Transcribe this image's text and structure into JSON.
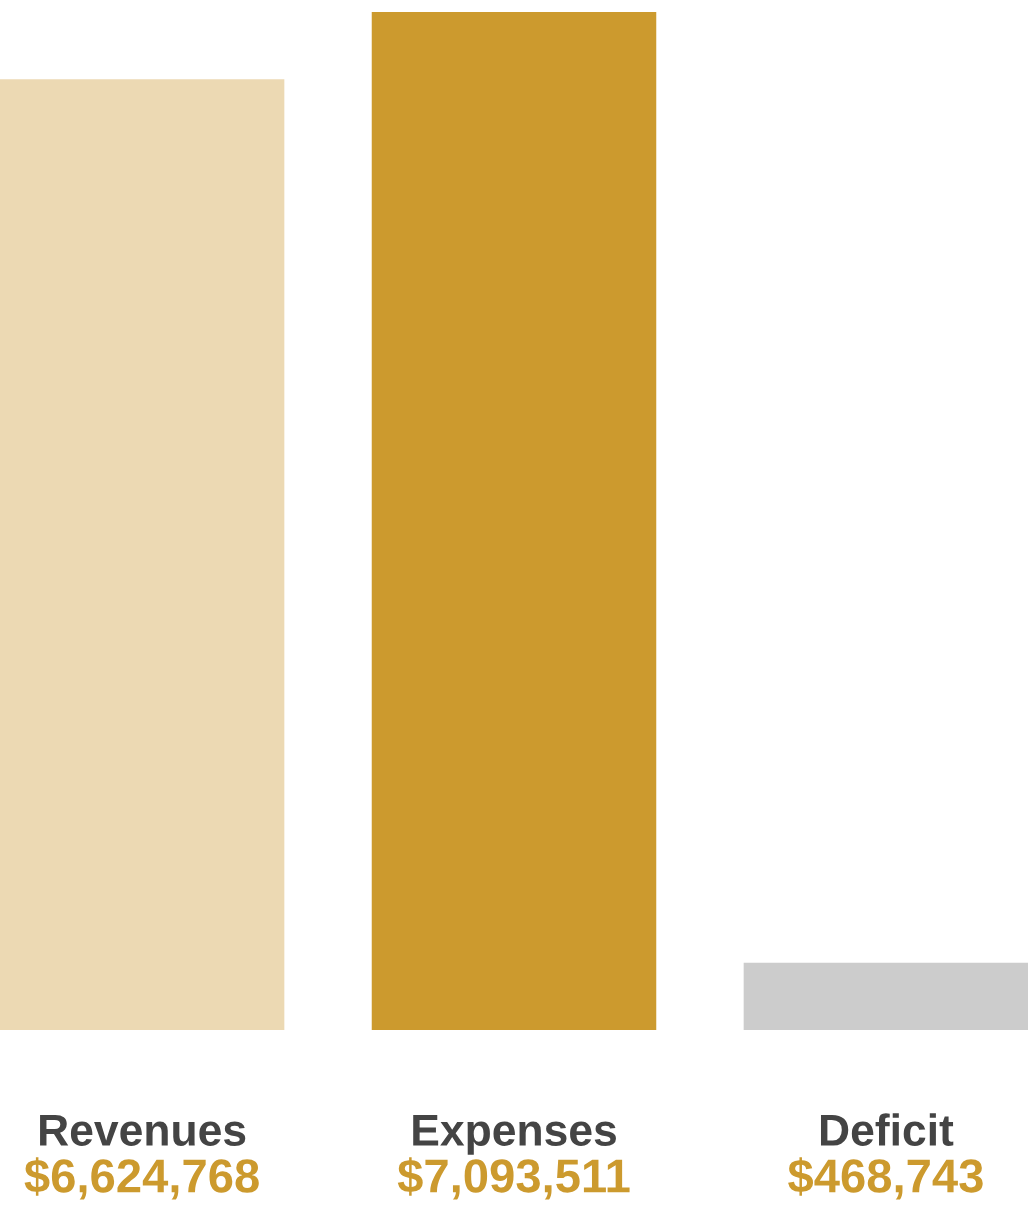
{
  "chart_data": {
    "type": "bar",
    "categories": [
      "Revenues",
      "Expenses",
      "Deficit"
    ],
    "values": [
      6624768,
      7093511,
      468743
    ],
    "colors": [
      "#ecd9b3",
      "#cc9a2e",
      "#cccccc"
    ],
    "value_labels": [
      "$6,624,768",
      "$7,093,511",
      "$468,743"
    ],
    "grid": false,
    "legend": false
  }
}
